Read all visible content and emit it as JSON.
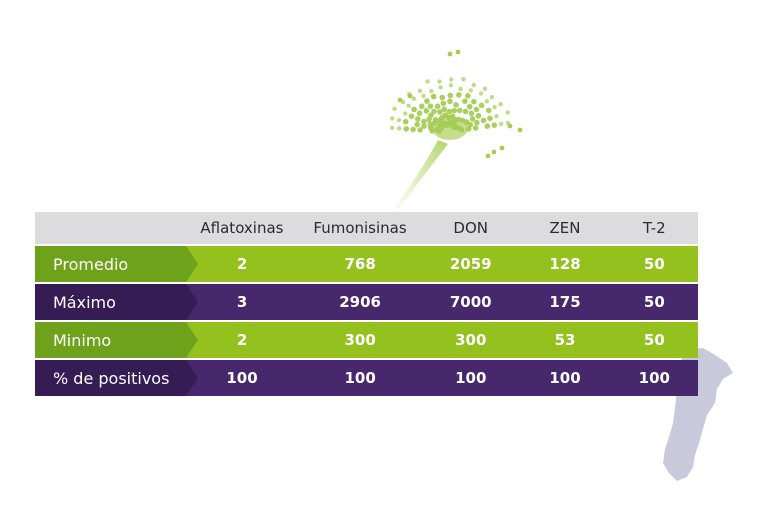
{
  "table": {
    "columns": [
      "Aflatoxinas",
      "Fumonisinas",
      "DON",
      "ZEN",
      "T-2"
    ],
    "rows": [
      {
        "label": "Promedio",
        "values": [
          "2",
          "768",
          "2059",
          "128",
          "50"
        ],
        "style": "green"
      },
      {
        "label": "Máximo",
        "values": [
          "3",
          "2906",
          "7000",
          "175",
          "50"
        ],
        "style": "purple"
      },
      {
        "label": "Minimo",
        "values": [
          "2",
          "300",
          "300",
          "53",
          "50"
        ],
        "style": "green"
      },
      {
        "label": "% de positivos",
        "values": [
          "100",
          "100",
          "100",
          "100",
          "100"
        ],
        "style": "purple"
      }
    ]
  },
  "colors": {
    "green": "#95c11f",
    "green_dark": "#6ea21b",
    "purple": "#47286d",
    "purple_dark": "#361c55",
    "header_bg": "#dcdcde",
    "map": "#c9c9dc"
  },
  "decorations": {
    "mold_illustration": "fungus-spore-icon",
    "map_illustration": "argentina-map-icon"
  }
}
